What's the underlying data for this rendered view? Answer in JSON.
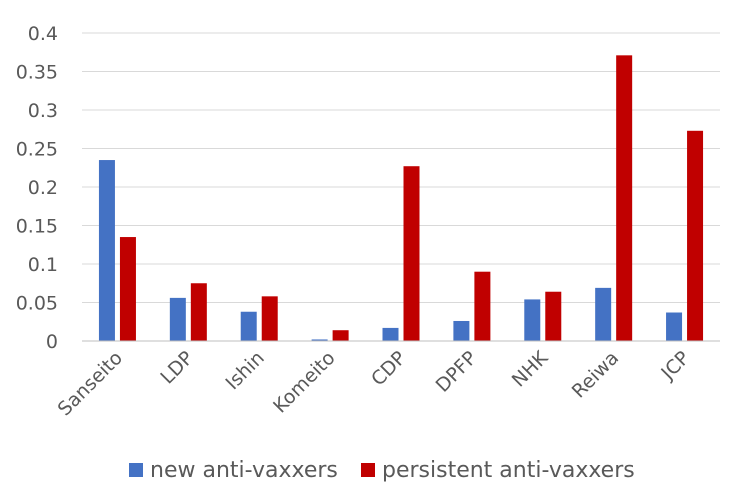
{
  "chart_data": {
    "type": "bar",
    "categories": [
      "Sanseito",
      "LDP",
      "Ishin",
      "Komeito",
      "CDP",
      "DPFP",
      "NHK",
      "Reiwa",
      "JCP"
    ],
    "series": [
      {
        "name": "new anti-vaxxers",
        "color": "#4472c4",
        "values": [
          0.235,
          0.056,
          0.038,
          0.002,
          0.017,
          0.026,
          0.054,
          0.069,
          0.037
        ]
      },
      {
        "name": "persistent anti-vaxxers",
        "color": "#c00000",
        "values": [
          0.135,
          0.075,
          0.058,
          0.014,
          0.227,
          0.09,
          0.064,
          0.371,
          0.273
        ]
      }
    ],
    "yticks": [
      "0",
      "0.05",
      "0.1",
      "0.15",
      "0.2",
      "0.25",
      "0.3",
      "0.35",
      "0.4"
    ],
    "ylim": [
      0,
      0.4
    ],
    "grid": true,
    "legend_position": "bottom"
  }
}
